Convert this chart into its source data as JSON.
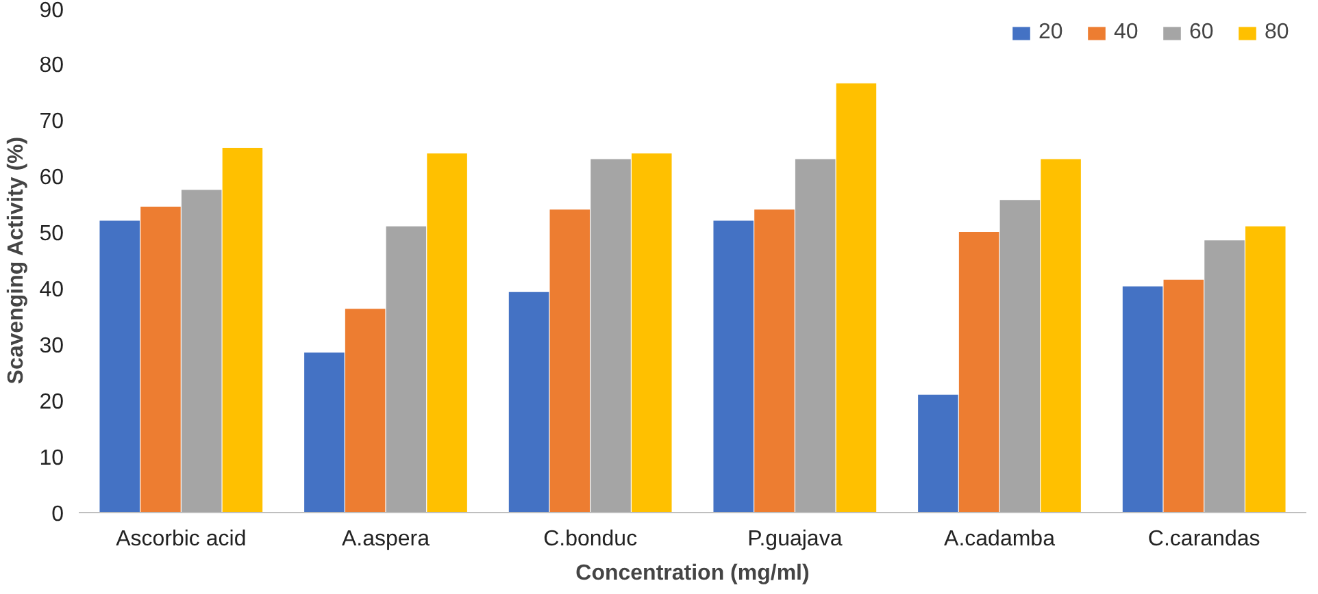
{
  "chart_data": {
    "type": "bar",
    "xlabel": "Concentration (mg/ml)",
    "ylabel": "Scavenging Activity (%)",
    "categories": [
      "Ascorbic acid",
      "A.aspera",
      "C.bonduc",
      "P.guajava",
      "A.cadamba",
      "C.carandas"
    ],
    "series": [
      {
        "name": "20",
        "color": "#4472c4",
        "values": [
          52,
          28.5,
          39.3,
          52,
          21,
          40.3
        ]
      },
      {
        "name": "40",
        "color": "#ed7d31",
        "values": [
          54.5,
          36.3,
          54,
          54,
          50,
          41.5
        ]
      },
      {
        "name": "60",
        "color": "#a5a5a5",
        "values": [
          57.5,
          51,
          63,
          63,
          55.7,
          48.5
        ]
      },
      {
        "name": "80",
        "color": "#ffc000",
        "values": [
          65,
          64,
          64,
          76.5,
          63,
          51
        ]
      }
    ],
    "ylim": [
      0,
      90
    ],
    "yticks": [
      0,
      10,
      20,
      30,
      40,
      50,
      60,
      70,
      80,
      90
    ],
    "grid": false,
    "legend": "top right"
  }
}
